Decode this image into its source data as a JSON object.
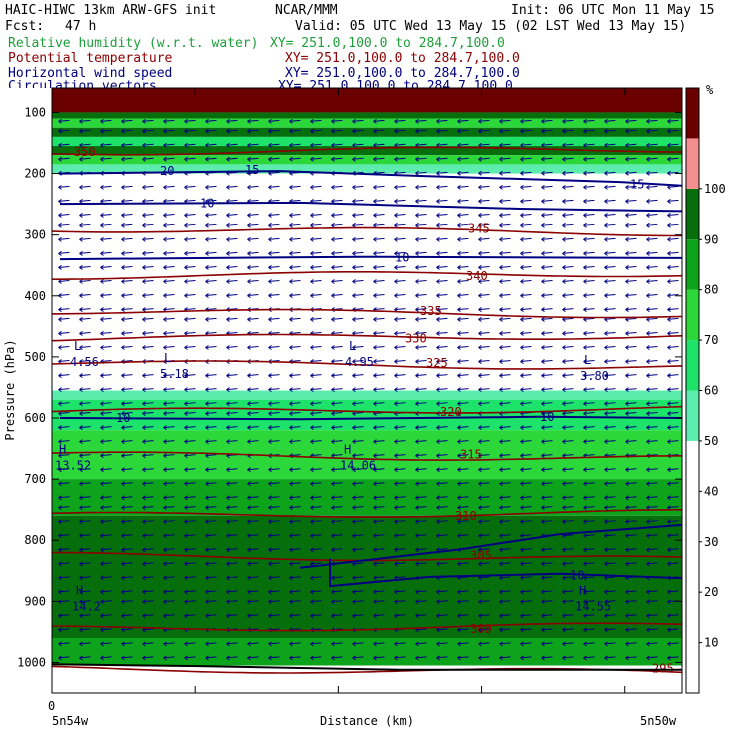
{
  "header": {
    "model": "HAIC-HIWC 13km ARW-GFS init",
    "agency": "NCAR/MMM",
    "init": "Init: 06 UTC Mon 11 May 15",
    "fcst_label": "Fcst:",
    "fcst_value": "47 h",
    "valid": "Valid: 05 UTC Wed 13 May 15 (02 LST Wed 13 May 15)"
  },
  "legend": [
    {
      "name": "Relative humidity (w.r.t. water)",
      "xy": "XY= 251.0,100.0 to 284.7,100.0",
      "color": "#1e9e3a"
    },
    {
      "name": "Potential temperature",
      "xy": "XY= 251.0,100.0 to 284.7,100.0",
      "color": "#8b0000"
    },
    {
      "name": "Horizontal wind speed",
      "xy": "XY= 251.0,100.0 to 284.7,100.0",
      "color": "#000080"
    },
    {
      "name": "Circulation vectors",
      "xy": "XY= 251.0,100.0 to 284.7,100.0",
      "color": "#000080"
    }
  ],
  "chart_data": {
    "type": "heatmap",
    "xlabel": "Distance (km)",
    "ylabel": "Pressure (hPa)",
    "x_tick_labels": {
      "zero": "0",
      "left": "5n54w",
      "right": "5n50w"
    },
    "yticks": [
      100,
      200,
      300,
      400,
      500,
      600,
      700,
      800,
      900,
      1000
    ],
    "ylim": [
      1050,
      60
    ],
    "colorbar": {
      "unit": "%",
      "ticks": [
        10,
        20,
        30,
        40,
        50,
        60,
        70,
        80,
        90,
        100
      ],
      "levels": [
        {
          "from": 0,
          "to": 50,
          "color": "#ffffff"
        },
        {
          "from": 50,
          "to": 60,
          "color": "#5cecae"
        },
        {
          "from": 60,
          "to": 70,
          "color": "#1ee36a"
        },
        {
          "from": 70,
          "to": 80,
          "color": "#2cd73a"
        },
        {
          "from": 80,
          "to": 90,
          "color": "#0da31b"
        },
        {
          "from": 90,
          "to": 100,
          "color": "#066f0c"
        },
        {
          "from": 100,
          "to": 110,
          "color": "#f48f8f"
        },
        {
          "from": 110,
          "to": 120,
          "color": "#6b0000"
        }
      ]
    },
    "rh_layers": [
      {
        "p_top": 60,
        "p_bot": 100,
        "rh": 115
      },
      {
        "p_top": 100,
        "p_bot": 110,
        "rh": 95
      },
      {
        "p_top": 110,
        "p_bot": 125,
        "rh": 75
      },
      {
        "p_top": 125,
        "p_bot": 140,
        "rh": 95
      },
      {
        "p_top": 140,
        "p_bot": 155,
        "rh": 65
      },
      {
        "p_top": 155,
        "p_bot": 170,
        "rh": 95
      },
      {
        "p_top": 170,
        "p_bot": 185,
        "rh": 75
      },
      {
        "p_top": 185,
        "p_bot": 200,
        "rh": 55
      },
      {
        "p_top": 555,
        "p_bot": 570,
        "rh": 55
      },
      {
        "p_top": 570,
        "p_bot": 620,
        "rh": 65
      },
      {
        "p_top": 620,
        "p_bot": 700,
        "rh": 75
      },
      {
        "p_top": 700,
        "p_bot": 760,
        "rh": 85
      },
      {
        "p_top": 760,
        "p_bot": 960,
        "rh": 95
      },
      {
        "p_top": 960,
        "p_bot": 1005,
        "rh": 85
      }
    ],
    "theta_contours": [
      {
        "label": "350",
        "p": 165
      },
      {
        "label": "345",
        "p": 290
      },
      {
        "label": "340",
        "p": 368
      },
      {
        "label": "335",
        "p": 425
      },
      {
        "label": "330",
        "p": 470
      },
      {
        "label": "325",
        "p": 510
      },
      {
        "label": "320",
        "p": 590
      },
      {
        "label": "315",
        "p": 660
      },
      {
        "label": "310",
        "p": 760
      },
      {
        "label": "305",
        "p": 825
      },
      {
        "label": "300",
        "p": 945
      },
      {
        "label": "295",
        "p": 1010
      }
    ],
    "wind_labels": [
      "15",
      "20",
      "10",
      "15",
      "10",
      "10",
      "10",
      "10"
    ],
    "centers": [
      {
        "type": "L",
        "value": "4.56"
      },
      {
        "type": "L",
        "value": "5.18"
      },
      {
        "type": "L",
        "value": "4.95"
      },
      {
        "type": "L",
        "value": "3.80"
      },
      {
        "type": "H",
        "value": "13.52"
      },
      {
        "type": "H",
        "value": "14.06"
      },
      {
        "type": "H",
        "value": "14.55"
      },
      {
        "type": "H",
        "value": "14.2"
      }
    ]
  }
}
